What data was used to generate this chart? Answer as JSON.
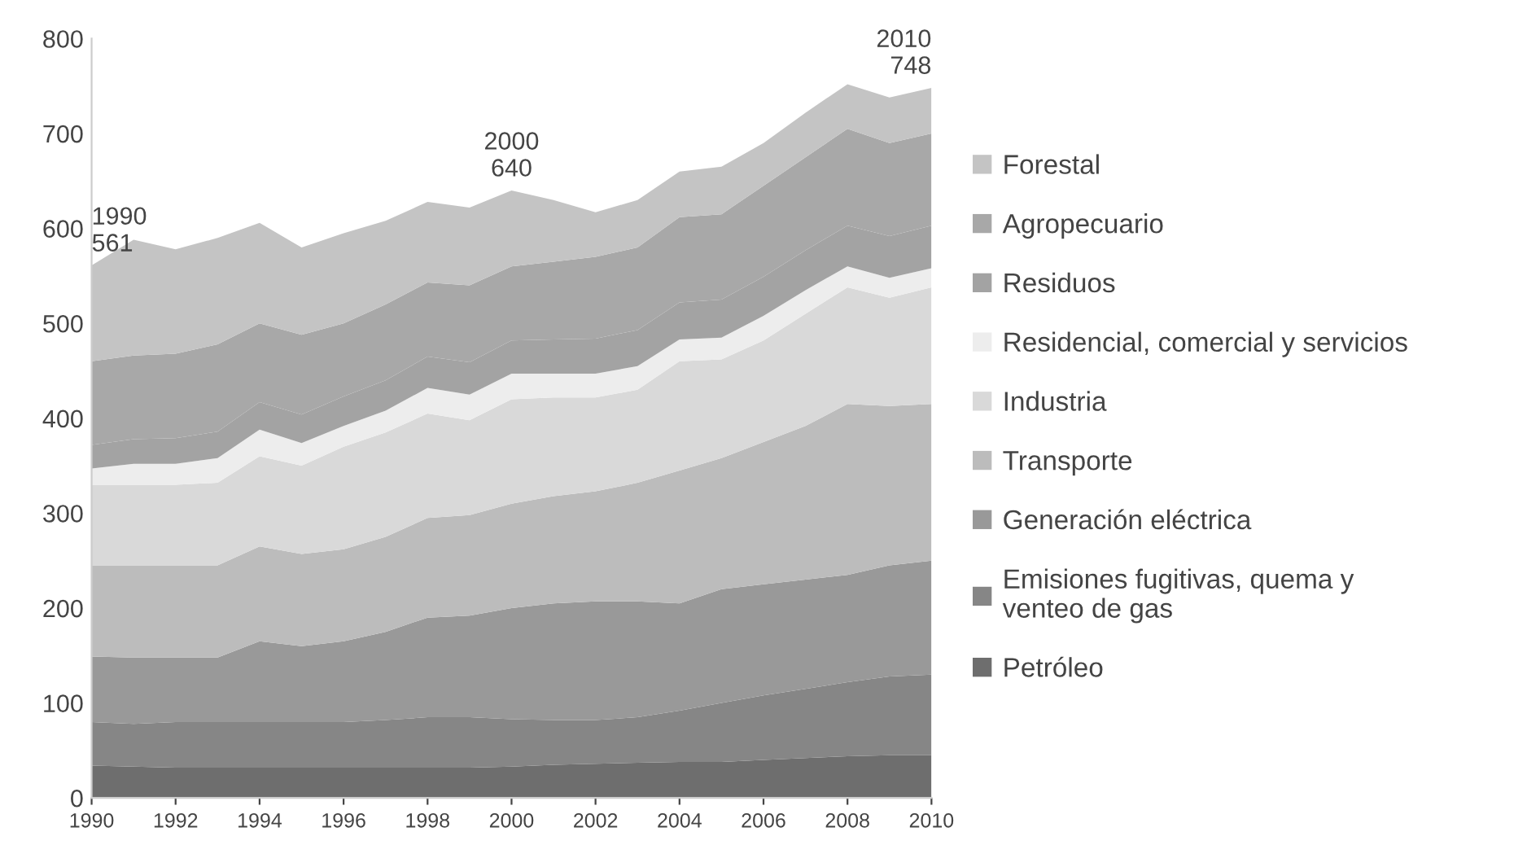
{
  "chart_data": {
    "type": "area",
    "stacked": true,
    "x": [
      1990,
      1991,
      1992,
      1993,
      1994,
      1995,
      1996,
      1997,
      1998,
      1999,
      2000,
      2001,
      2002,
      2003,
      2004,
      2005,
      2006,
      2007,
      2008,
      2009,
      2010
    ],
    "xlim": [
      1990,
      2010
    ],
    "xticks": [
      1990,
      1992,
      1994,
      1996,
      1998,
      2000,
      2002,
      2004,
      2006,
      2008,
      2010
    ],
    "ylim": [
      0,
      800
    ],
    "yticks": [
      0,
      100,
      200,
      300,
      400,
      500,
      600,
      700,
      800
    ],
    "grid": false,
    "legend": "right",
    "series": [
      {
        "name": "Petróleo",
        "color": "#6e6e6e",
        "values": [
          34,
          33,
          32,
          32,
          32,
          32,
          32,
          32,
          32,
          32,
          33,
          35,
          36,
          37,
          38,
          38,
          40,
          42,
          44,
          45,
          45
        ]
      },
      {
        "name": "Emisiones fugitivas, quema y\nventeo de gas",
        "color": "#868686",
        "values": [
          46,
          45,
          48,
          48,
          48,
          48,
          48,
          50,
          53,
          53,
          50,
          47,
          46,
          48,
          54,
          62,
          68,
          73,
          78,
          83,
          85
        ]
      },
      {
        "name": "Generación eléctrica",
        "color": "#999999",
        "values": [
          69,
          70,
          68,
          68,
          85,
          80,
          85,
          93,
          105,
          107,
          117,
          123,
          125,
          122,
          113,
          120,
          117,
          115,
          113,
          117,
          120
        ]
      },
      {
        "name": "Transporte",
        "color": "#bcbcbc",
        "values": [
          96,
          97,
          97,
          97,
          100,
          97,
          97,
          100,
          105,
          106,
          110,
          113,
          116,
          125,
          140,
          138,
          150,
          162,
          180,
          168,
          165
        ]
      },
      {
        "name": "Industria",
        "color": "#d9d9d9",
        "values": [
          85,
          85,
          85,
          87,
          95,
          93,
          108,
          110,
          110,
          100,
          110,
          104,
          99,
          98,
          115,
          104,
          107,
          118,
          123,
          114,
          123
        ]
      },
      {
        "name": "Residencial, comercial y servicios",
        "color": "#ededed",
        "values": [
          17,
          22,
          22,
          26,
          28,
          24,
          22,
          23,
          27,
          27,
          27,
          25,
          25,
          25,
          23,
          23,
          26,
          25,
          22,
          21,
          20
        ]
      },
      {
        "name": "Residuos",
        "color": "#a3a3a3",
        "values": [
          25,
          26,
          27,
          28,
          29,
          30,
          31,
          32,
          33,
          34,
          35,
          36,
          37,
          38,
          39,
          40,
          41,
          42,
          43,
          44,
          45
        ]
      },
      {
        "name": "Agropecuario",
        "color": "#a8a8a8",
        "values": [
          88,
          88,
          89,
          92,
          83,
          84,
          77,
          80,
          78,
          81,
          78,
          82,
          86,
          87,
          90,
          90,
          96,
          98,
          102,
          98,
          97
        ]
      },
      {
        "name": "Forestal",
        "color": "#c4c4c4",
        "values": [
          101,
          122,
          110,
          112,
          106,
          92,
          95,
          88,
          85,
          82,
          80,
          65,
          47,
          50,
          48,
          50,
          45,
          47,
          47,
          48,
          48
        ]
      }
    ],
    "annotations": [
      {
        "text": "1990\n561",
        "x": 1990,
        "y": 561
      },
      {
        "text": "2000\n640",
        "x": 2000,
        "y": 640
      },
      {
        "text": "2010\n748",
        "x": 2010,
        "y": 748
      }
    ]
  }
}
